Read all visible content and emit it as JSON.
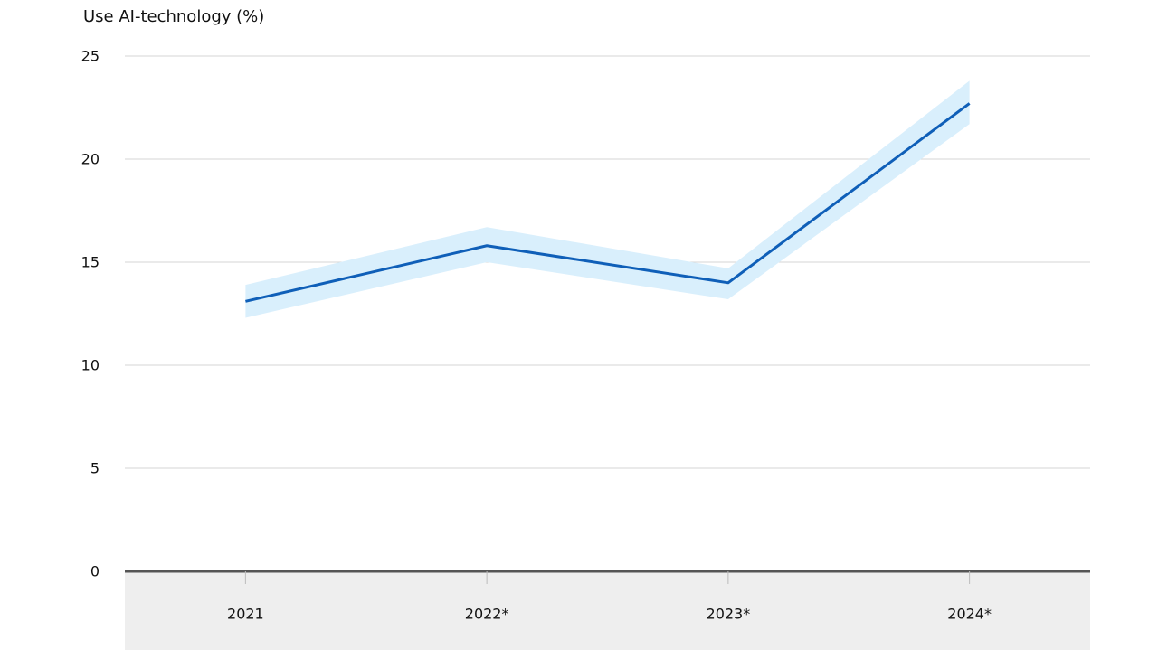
{
  "chart_data": {
    "type": "line",
    "y_label": "Use AI-technology (%)",
    "categories": [
      "2021",
      "2022*",
      "2023*",
      "2024*"
    ],
    "values": [
      13.1,
      15.8,
      14.0,
      22.7
    ],
    "band_lower": [
      12.3,
      15.0,
      13.2,
      21.7
    ],
    "band_upper": [
      13.9,
      16.7,
      14.7,
      23.8
    ],
    "color": "#0f5fb8",
    "band_color": "#d9effc",
    "ylim": [
      0,
      25
    ],
    "yticks": [
      0,
      5,
      10,
      15,
      20,
      25
    ],
    "grid": true
  }
}
